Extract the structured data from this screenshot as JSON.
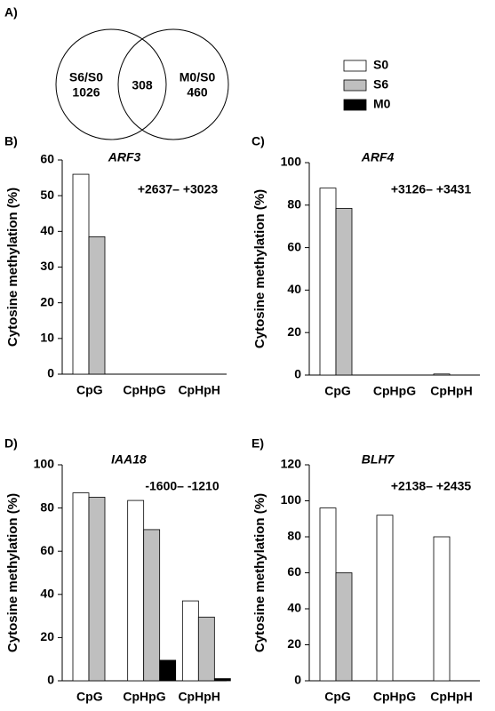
{
  "chart_data": [
    {
      "type": "venn",
      "panel_label": "A)",
      "sets": [
        {
          "name": "S6/S0",
          "value": 1026
        },
        {
          "name": "M0/S0",
          "value": 460
        }
      ],
      "overlap": 308
    },
    {
      "type": "bar",
      "panel_label": "B)",
      "title": "ARF3",
      "annotation": "+2637– +3023",
      "ylabel": "Cytosine methylation (%)",
      "categories": [
        "CpG",
        "CpHpG",
        "CpHpH"
      ],
      "series": [
        {
          "name": "S0",
          "color": "#ffffff",
          "values": [
            56,
            0,
            0
          ]
        },
        {
          "name": "S6",
          "color": "#bfbfbf",
          "values": [
            38.5,
            0,
            0
          ]
        },
        {
          "name": "M0",
          "color": "#000000",
          "values": [
            0,
            0,
            0
          ]
        }
      ],
      "ylim": [
        0,
        60
      ],
      "yticks": [
        0,
        10,
        20,
        30,
        40,
        50,
        60
      ]
    },
    {
      "type": "bar",
      "panel_label": "C)",
      "title": "ARF4",
      "annotation": "+3126– +3431",
      "ylabel": "Cytosine methylation (%)",
      "categories": [
        "CpG",
        "CpHpG",
        "CpHpH"
      ],
      "series": [
        {
          "name": "S0",
          "color": "#ffffff",
          "values": [
            88,
            0,
            0.5
          ]
        },
        {
          "name": "S6",
          "color": "#bfbfbf",
          "values": [
            78.5,
            0,
            0
          ]
        },
        {
          "name": "M0",
          "color": "#000000",
          "values": [
            0,
            0,
            0
          ]
        }
      ],
      "ylim": [
        0,
        100
      ],
      "yticks": [
        0,
        20,
        40,
        60,
        80,
        100
      ]
    },
    {
      "type": "bar",
      "panel_label": "D)",
      "title": "IAA18",
      "annotation": "-1600– -1210",
      "ylabel": "Cytosine methylation (%)",
      "categories": [
        "CpG",
        "CpHpG",
        "CpHpH"
      ],
      "series": [
        {
          "name": "S0",
          "color": "#ffffff",
          "values": [
            87,
            83.5,
            37
          ]
        },
        {
          "name": "S6",
          "color": "#bfbfbf",
          "values": [
            85,
            70,
            29.5
          ]
        },
        {
          "name": "M0",
          "color": "#000000",
          "values": [
            0,
            9.5,
            1
          ]
        }
      ],
      "ylim": [
        0,
        100
      ],
      "yticks": [
        0,
        20,
        40,
        60,
        80,
        100
      ]
    },
    {
      "type": "bar",
      "panel_label": "E)",
      "title": "BLH7",
      "annotation": "+2138– +2435",
      "ylabel": "Cytosine methylation (%)",
      "categories": [
        "CpG",
        "CpHpG",
        "CpHpH"
      ],
      "series": [
        {
          "name": "S0",
          "color": "#ffffff",
          "values": [
            96,
            92,
            80
          ]
        },
        {
          "name": "S6",
          "color": "#bfbfbf",
          "values": [
            60,
            0,
            0
          ]
        },
        {
          "name": "M0",
          "color": "#000000",
          "values": [
            0,
            0,
            0
          ]
        }
      ],
      "ylim": [
        0,
        120
      ],
      "yticks": [
        0,
        20,
        40,
        60,
        80,
        100,
        120
      ]
    }
  ]
}
